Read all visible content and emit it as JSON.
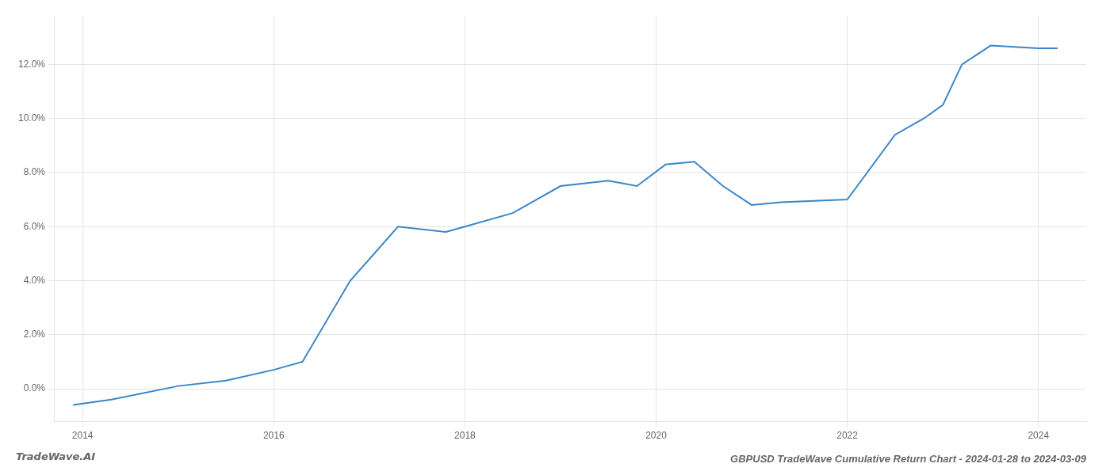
{
  "chart_data": {
    "type": "line",
    "title": "GBPUSD TradeWave Cumulative Return Chart - 2024-01-28 to 2024-03-09",
    "annotations": [
      "TradeWave.AI"
    ],
    "x": [
      2013.9,
      2014.3,
      2015.0,
      2015.5,
      2016.0,
      2016.3,
      2016.8,
      2017.3,
      2017.8,
      2018.0,
      2018.5,
      2019.0,
      2019.5,
      2019.8,
      2020.1,
      2020.4,
      2020.7,
      2021.0,
      2021.3,
      2022.0,
      2022.5,
      2022.8,
      2023.0,
      2023.2,
      2023.5,
      2024.0,
      2024.2
    ],
    "values": [
      -0.006,
      -0.004,
      0.001,
      0.003,
      0.007,
      0.01,
      0.04,
      0.06,
      0.058,
      0.06,
      0.065,
      0.075,
      0.077,
      0.075,
      0.083,
      0.084,
      0.075,
      0.068,
      0.069,
      0.07,
      0.094,
      0.1,
      0.105,
      0.12,
      0.127,
      0.126,
      0.126
    ],
    "color": "#3a86c8",
    "xlim": [
      2013.7,
      2024.5
    ],
    "xticks": [
      2014,
      2016,
      2018,
      2020,
      2022,
      2024
    ],
    "ylim": [
      -0.012,
      0.138
    ],
    "yticks": [
      {
        "value": 0.0,
        "label": "0.0%"
      },
      {
        "value": 0.02,
        "label": "2.0%"
      },
      {
        "value": 0.04,
        "label": "4.0%"
      },
      {
        "value": 0.06,
        "label": "6.0%"
      },
      {
        "value": 0.08,
        "label": "8.0%"
      },
      {
        "value": 0.1,
        "label": "10.0%"
      },
      {
        "value": 0.12,
        "label": "12.0%"
      }
    ],
    "grid": true
  }
}
